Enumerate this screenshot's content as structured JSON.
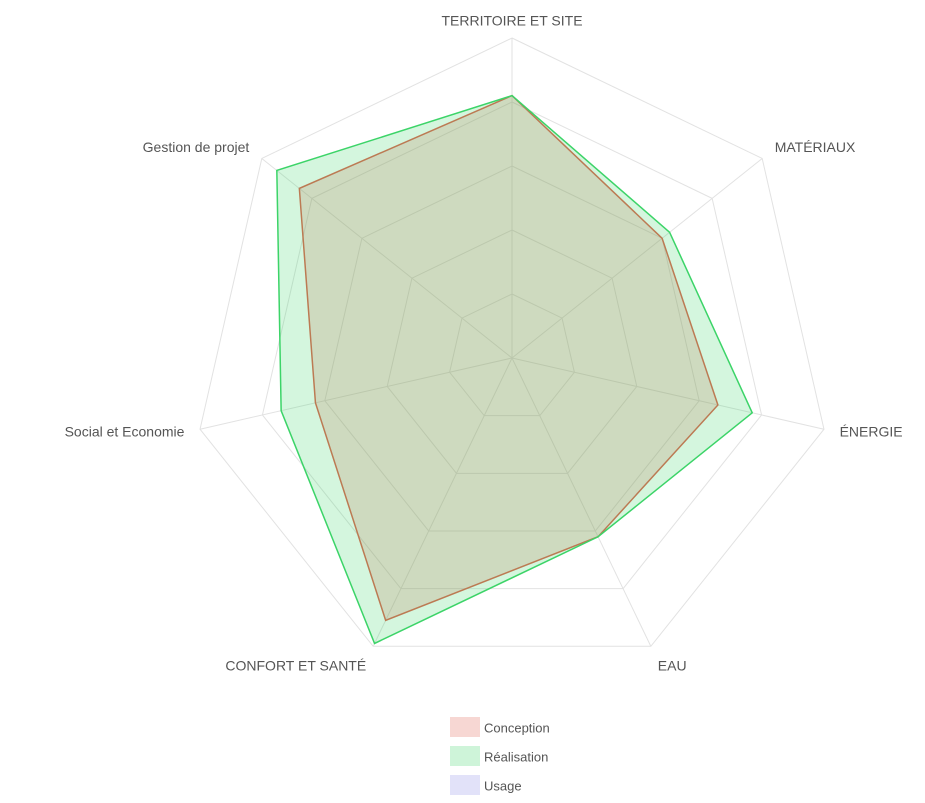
{
  "chart_data": {
    "type": "radar",
    "categories": [
      "TERRITOIRE ET SITE",
      "MATÉRIAUX",
      "ÉNERGIE",
      "EAU",
      "CONFORT ET SANTÉ",
      "Social et Economie",
      "Gestion de projet"
    ],
    "ylim": [
      0,
      100
    ],
    "yticks": [
      20,
      40,
      60,
      80,
      100
    ],
    "grid": true,
    "series": [
      {
        "name": "Conception",
        "color": "#e0604e",
        "values": [
          82,
          60,
          66,
          62,
          91,
          63,
          85
        ]
      },
      {
        "name": "Réalisation",
        "color": "#3cd468",
        "values": [
          82,
          63,
          77,
          62,
          99,
          74,
          94
        ]
      },
      {
        "name": "Usage",
        "color": "#8c8ce6",
        "values": [
          null,
          null,
          null,
          null,
          null,
          null,
          null
        ]
      }
    ]
  }
}
